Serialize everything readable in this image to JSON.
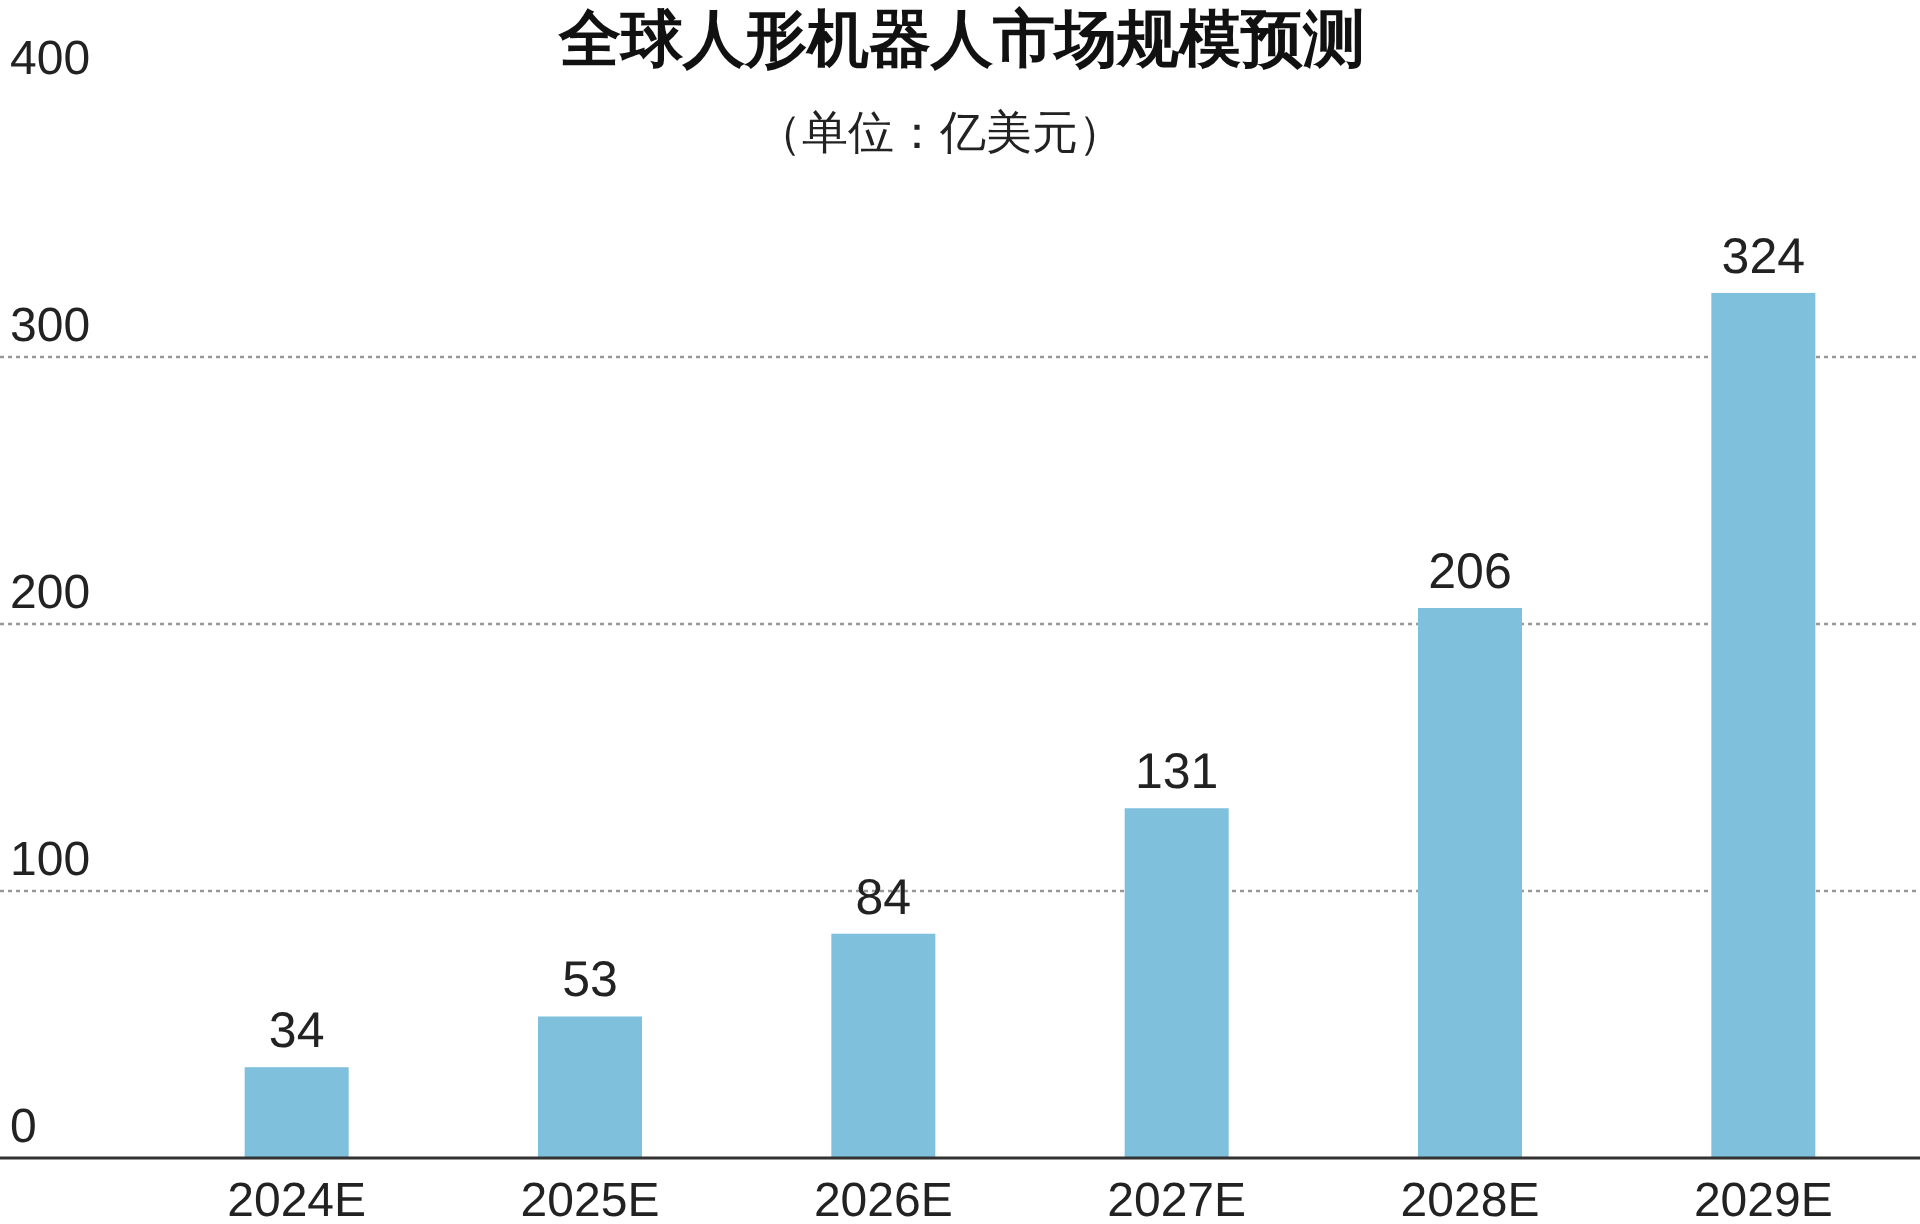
{
  "chart_data": {
    "type": "bar",
    "title": "全球人形机器人市场规模预测",
    "subtitle": "（单位：亿美元）",
    "categories": [
      "2024E",
      "2025E",
      "2026E",
      "2027E",
      "2028E",
      "2029E"
    ],
    "values": [
      34,
      53,
      84,
      131,
      206,
      324
    ],
    "color": "#7fc0dc",
    "ylim": [
      0,
      400
    ],
    "yticks": [
      0,
      100,
      200,
      300,
      400
    ],
    "grid": "y",
    "data_labels": true
  }
}
